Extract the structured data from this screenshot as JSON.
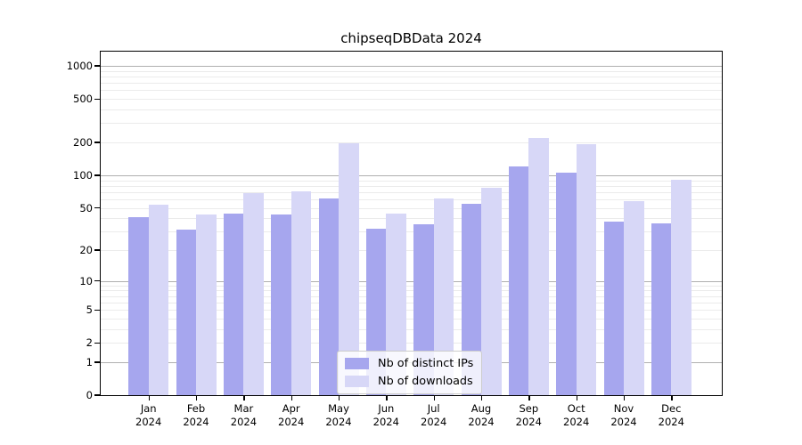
{
  "chart_data": {
    "type": "bar",
    "title": "chipseqDBData 2024",
    "categories": [
      "Jan",
      "Feb",
      "Mar",
      "Apr",
      "May",
      "Jun",
      "Jul",
      "Aug",
      "Sep",
      "Oct",
      "Nov",
      "Dec"
    ],
    "x_tick_second_line": "2024",
    "series": [
      {
        "name": "Nb of distinct IPs",
        "color": "#a6a6ee",
        "values": [
          41,
          31,
          44,
          43,
          61,
          32,
          35,
          54,
          121,
          105,
          37,
          36
        ]
      },
      {
        "name": "Nb of downloads",
        "color": "#d7d7f7",
        "values": [
          53,
          43,
          68,
          71,
          198,
          44,
          61,
          76,
          220,
          192,
          58,
          91
        ]
      }
    ],
    "yscale": "log1p",
    "ylim": [
      0,
      1350
    ],
    "yticks": [
      0,
      1,
      2,
      5,
      10,
      20,
      50,
      100,
      200,
      500,
      1000
    ],
    "major_gridlines": [
      1,
      10,
      100,
      1000
    ],
    "minor_gridlines": [
      2,
      3,
      4,
      5,
      6,
      7,
      8,
      9,
      20,
      30,
      40,
      50,
      60,
      70,
      80,
      90,
      200,
      300,
      400,
      500,
      600,
      700,
      800,
      900
    ],
    "grid": true,
    "legend_position": "lower center",
    "colors": {
      "major_grid": "#b0b0b0",
      "minor_grid": "#ebebeb",
      "axis": "#000000"
    }
  }
}
